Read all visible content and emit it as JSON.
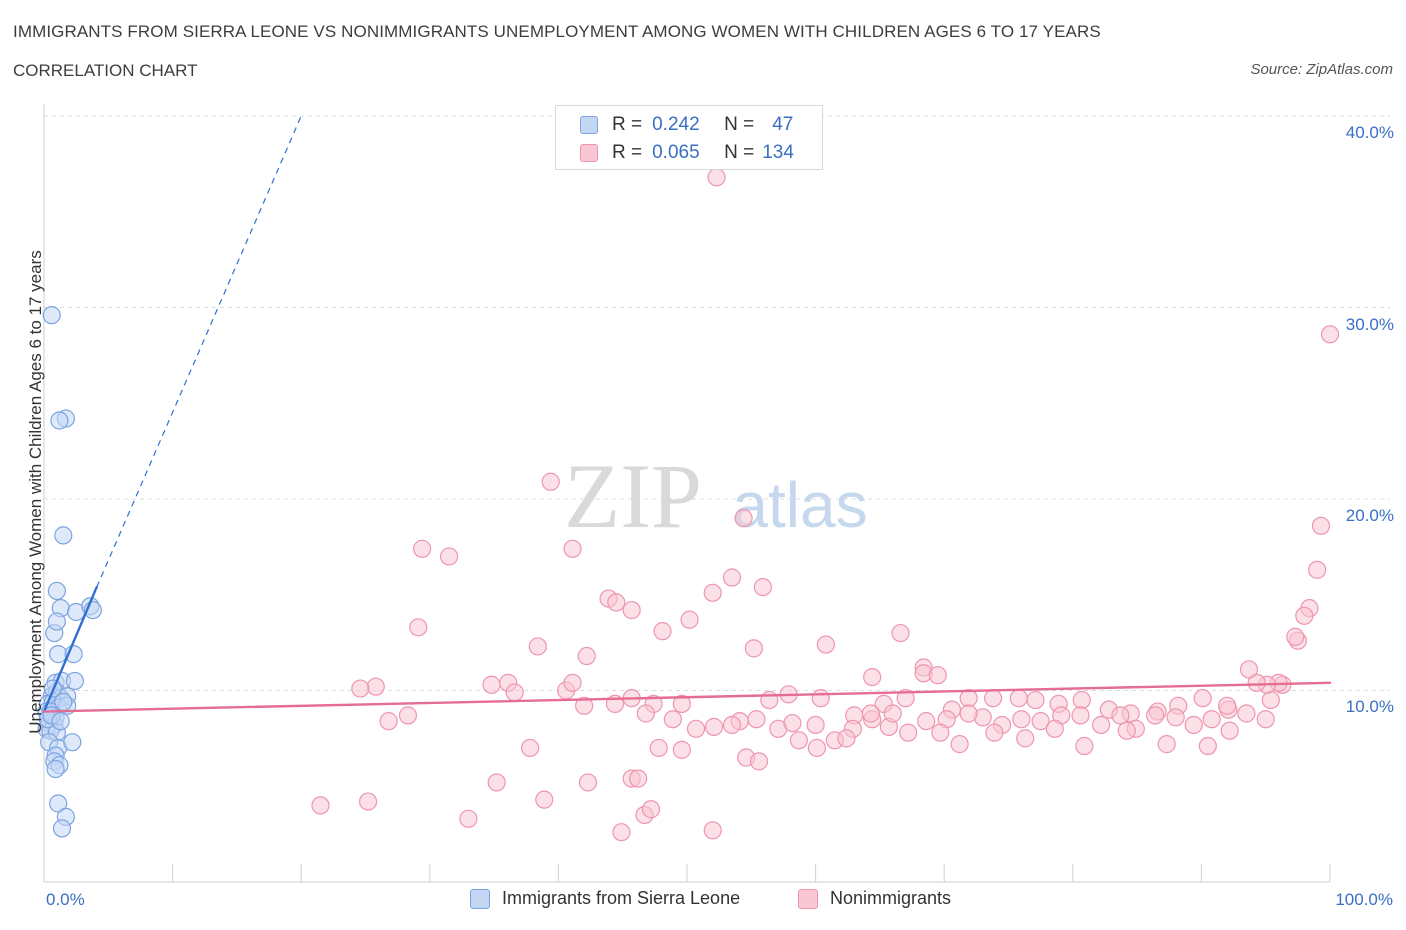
{
  "title": "IMMIGRANTS FROM SIERRA LEONE VS NONIMMIGRANTS UNEMPLOYMENT AMONG WOMEN WITH CHILDREN AGES 6 TO 17 YEARS",
  "subtitle": "CORRELATION CHART",
  "source": "Source: ZipAtlas.com",
  "watermark": {
    "zip": "ZIP",
    "atlas": "atlas"
  },
  "legend": {
    "r_label": "R =",
    "n_label": "N =",
    "series": [
      {
        "r": "0.242",
        "n": "47",
        "fill": "#c3d7f5",
        "stroke": "#7da3e0"
      },
      {
        "r": "0.065",
        "n": "134",
        "fill": "#f9c6d4",
        "stroke": "#ee95b0"
      }
    ]
  },
  "bottom_legend": [
    "Immigrants from Sierra Leone",
    "Nonimmigrants"
  ],
  "chart_data": {
    "type": "scatter",
    "title": "IMMIGRANTS FROM SIERRA LEONE VS NONIMMIGRANTS UNEMPLOYMENT AMONG WOMEN WITH CHILDREN AGES 6 TO 17 YEARS",
    "xlabel": "",
    "ylabel": "Unemployment Among Women with Children Ages 6 to 17 years",
    "xlim": [
      0,
      100
    ],
    "ylim": [
      0,
      40
    ],
    "x_tick_labels": [
      "0.0%",
      "100.0%"
    ],
    "y_ticks": [
      10,
      20,
      30,
      40
    ],
    "y_tick_labels": [
      "10.0%",
      "20.0%",
      "30.0%",
      "40.0%"
    ],
    "grid": "horizontal dashed",
    "legend_position": "top-center",
    "series": [
      {
        "name": "Immigrants from Sierra Leone",
        "color": "#7da3e0",
        "line_color": "#2f6fd0",
        "trend": {
          "x": [
            0,
            4.1
          ],
          "y": [
            8.9,
            15.4
          ],
          "dashed_extension": {
            "x": [
              4.1,
              20
            ],
            "y": [
              15.4,
              40
            ]
          }
        },
        "points": [
          [
            0.6,
            29.6
          ],
          [
            1.7,
            24.2
          ],
          [
            1.2,
            24.1
          ],
          [
            1.5,
            18.1
          ],
          [
            1.0,
            15.2
          ],
          [
            1.3,
            14.3
          ],
          [
            2.5,
            14.1
          ],
          [
            3.6,
            14.4
          ],
          [
            3.8,
            14.2
          ],
          [
            0.8,
            13.0
          ],
          [
            1.0,
            13.6
          ],
          [
            1.1,
            11.9
          ],
          [
            2.3,
            11.9
          ],
          [
            0.9,
            10.4
          ],
          [
            1.4,
            10.5
          ],
          [
            2.4,
            10.5
          ],
          [
            0.6,
            9.7
          ],
          [
            1.0,
            9.9
          ],
          [
            1.3,
            9.6
          ],
          [
            1.8,
            9.7
          ],
          [
            0.3,
            9.3
          ],
          [
            0.7,
            9.4
          ],
          [
            1.1,
            9.1
          ],
          [
            1.8,
            9.2
          ],
          [
            0.2,
            8.9
          ],
          [
            0.5,
            8.9
          ],
          [
            0.9,
            8.6
          ],
          [
            0.4,
            8.3
          ],
          [
            0.8,
            8.2
          ],
          [
            0.2,
            8.0
          ],
          [
            0.5,
            7.9
          ],
          [
            1.0,
            7.8
          ],
          [
            0.4,
            7.3
          ],
          [
            1.1,
            7.0
          ],
          [
            0.9,
            6.6
          ],
          [
            2.2,
            7.3
          ],
          [
            0.8,
            6.3
          ],
          [
            1.2,
            6.1
          ],
          [
            0.9,
            5.9
          ],
          [
            1.1,
            4.1
          ],
          [
            1.7,
            3.4
          ],
          [
            1.4,
            2.8
          ],
          [
            0.3,
            8.5
          ],
          [
            0.6,
            8.7
          ],
          [
            1.3,
            8.4
          ],
          [
            0.7,
            10.1
          ],
          [
            1.5,
            9.4
          ]
        ]
      },
      {
        "name": "Nonimmigrants",
        "color": "#ee95b0",
        "line_color": "#e56c92",
        "trend": {
          "x": [
            0,
            100
          ],
          "y": [
            8.9,
            10.4
          ]
        },
        "points": [
          [
            52.3,
            36.8
          ],
          [
            39.4,
            20.9
          ],
          [
            54.4,
            19.0
          ],
          [
            29.4,
            17.4
          ],
          [
            31.5,
            17.0
          ],
          [
            41.1,
            17.4
          ],
          [
            100,
            28.6
          ],
          [
            99.3,
            18.6
          ],
          [
            99.0,
            16.3
          ],
          [
            98.4,
            14.3
          ],
          [
            98.0,
            13.9
          ],
          [
            97.5,
            12.6
          ],
          [
            97.3,
            12.8
          ],
          [
            43.9,
            14.8
          ],
          [
            44.5,
            14.6
          ],
          [
            45.7,
            14.2
          ],
          [
            53.5,
            15.9
          ],
          [
            52.0,
            15.1
          ],
          [
            55.9,
            15.4
          ],
          [
            50.2,
            13.7
          ],
          [
            48.1,
            13.1
          ],
          [
            29.1,
            13.3
          ],
          [
            38.4,
            12.3
          ],
          [
            42.2,
            11.8
          ],
          [
            55.2,
            12.2
          ],
          [
            60.8,
            12.4
          ],
          [
            66.6,
            13.0
          ],
          [
            64.4,
            10.7
          ],
          [
            68.4,
            11.2
          ],
          [
            68.4,
            10.9
          ],
          [
            69.5,
            10.8
          ],
          [
            34.8,
            10.3
          ],
          [
            40.6,
            10.0
          ],
          [
            41.1,
            10.4
          ],
          [
            25.8,
            10.2
          ],
          [
            36.1,
            10.4
          ],
          [
            45.7,
            9.6
          ],
          [
            49.6,
            9.3
          ],
          [
            56.4,
            9.5
          ],
          [
            57.9,
            9.8
          ],
          [
            60.4,
            9.6
          ],
          [
            63.0,
            8.7
          ],
          [
            65.3,
            9.3
          ],
          [
            67.0,
            9.6
          ],
          [
            70.6,
            9.0
          ],
          [
            71.9,
            9.6
          ],
          [
            73.8,
            9.6
          ],
          [
            75.8,
            9.6
          ],
          [
            77.1,
            9.5
          ],
          [
            78.9,
            9.3
          ],
          [
            80.7,
            9.5
          ],
          [
            82.8,
            9.0
          ],
          [
            84.5,
            8.8
          ],
          [
            86.6,
            8.9
          ],
          [
            88.2,
            9.2
          ],
          [
            90.1,
            9.6
          ],
          [
            92.1,
            9.0
          ],
          [
            93.5,
            8.8
          ],
          [
            95.4,
            9.5
          ],
          [
            96.3,
            10.3
          ],
          [
            96.0,
            10.4
          ],
          [
            95.1,
            10.3
          ],
          [
            94.3,
            10.4
          ],
          [
            93.7,
            11.1
          ],
          [
            92.0,
            9.2
          ],
          [
            90.8,
            8.5
          ],
          [
            89.4,
            8.2
          ],
          [
            88.0,
            8.6
          ],
          [
            86.4,
            8.7
          ],
          [
            84.9,
            8.0
          ],
          [
            83.7,
            8.7
          ],
          [
            82.2,
            8.2
          ],
          [
            80.6,
            8.7
          ],
          [
            79.1,
            8.7
          ],
          [
            77.5,
            8.4
          ],
          [
            76.0,
            8.5
          ],
          [
            74.5,
            8.2
          ],
          [
            73.0,
            8.6
          ],
          [
            71.9,
            8.8
          ],
          [
            70.2,
            8.5
          ],
          [
            68.6,
            8.4
          ],
          [
            67.2,
            7.8
          ],
          [
            65.7,
            8.1
          ],
          [
            64.4,
            8.5
          ],
          [
            62.9,
            8.0
          ],
          [
            61.5,
            7.4
          ],
          [
            60.0,
            8.2
          ],
          [
            58.7,
            7.4
          ],
          [
            57.1,
            8.0
          ],
          [
            55.4,
            8.5
          ],
          [
            54.1,
            8.4
          ],
          [
            52.1,
            8.1
          ],
          [
            50.7,
            8.0
          ],
          [
            48.9,
            8.5
          ],
          [
            47.4,
            9.3
          ],
          [
            46.8,
            8.8
          ],
          [
            44.4,
            9.3
          ],
          [
            28.3,
            8.7
          ],
          [
            26.8,
            8.4
          ],
          [
            24.6,
            10.1
          ],
          [
            36.6,
            9.9
          ],
          [
            42.0,
            9.2
          ],
          [
            53.5,
            8.2
          ],
          [
            58.2,
            8.3
          ],
          [
            60.1,
            7.0
          ],
          [
            62.4,
            7.5
          ],
          [
            64.3,
            8.8
          ],
          [
            66.0,
            8.8
          ],
          [
            69.7,
            7.8
          ],
          [
            71.2,
            7.2
          ],
          [
            73.9,
            7.8
          ],
          [
            76.3,
            7.5
          ],
          [
            78.6,
            8.0
          ],
          [
            80.9,
            7.1
          ],
          [
            84.2,
            7.9
          ],
          [
            87.3,
            7.2
          ],
          [
            90.5,
            7.1
          ],
          [
            92.2,
            7.9
          ],
          [
            95.0,
            8.5
          ],
          [
            37.8,
            7.0
          ],
          [
            47.8,
            7.0
          ],
          [
            54.6,
            6.5
          ],
          [
            49.6,
            6.9
          ],
          [
            35.2,
            5.2
          ],
          [
            42.3,
            5.2
          ],
          [
            45.7,
            5.4
          ],
          [
            46.2,
            5.4
          ],
          [
            38.9,
            4.3
          ],
          [
            21.5,
            4.0
          ],
          [
            25.2,
            4.2
          ],
          [
            33.0,
            3.3
          ],
          [
            46.7,
            3.5
          ],
          [
            47.2,
            3.8
          ],
          [
            44.9,
            2.6
          ],
          [
            52.0,
            2.7
          ],
          [
            55.6,
            6.3
          ]
        ]
      }
    ]
  }
}
